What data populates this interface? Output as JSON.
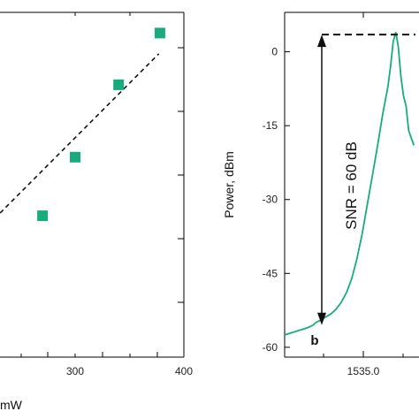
{
  "chart_data": [
    {
      "type": "scatter",
      "panel": "left",
      "xlabel": "mW",
      "ylabel": "",
      "x_ticks": [
        "300",
        "400"
      ],
      "xlim": [
        200,
        400
      ],
      "ylim": [
        0,
        1
      ],
      "series": [
        {
          "points": [
            {
              "x": 270,
              "y": 0.41
            },
            {
              "x": 300,
              "y": 0.58
            },
            {
              "x": 340,
              "y": 0.79
            },
            {
              "x": 378,
              "y": 0.94
            }
          ]
        }
      ],
      "fit_line": {
        "x": [
          200,
          377
        ],
        "y": [
          0.32,
          0.88
        ]
      },
      "colors": {
        "marker": "#1aab7c",
        "fit": "#111111"
      }
    },
    {
      "type": "line",
      "panel": "right",
      "panel_label": "b",
      "ylabel": "Power, dBm",
      "xlabel": "",
      "x_ticks": [
        "1535.0"
      ],
      "y_ticks": [
        "0",
        "-15",
        "-30",
        "-45",
        "-60"
      ],
      "xlim": [
        1534.0,
        1536.6
      ],
      "ylim": [
        -62,
        8
      ],
      "annotation": "SNR = 60 dB",
      "snr_levels": {
        "top_dbm": 3.5,
        "bottom_dbm": -55.5
      },
      "series": [
        {
          "x": [
            1534.0,
            1534.15,
            1534.3,
            1534.45,
            1534.55,
            1534.6,
            1534.7,
            1534.8,
            1534.9,
            1535.0,
            1535.1,
            1535.2,
            1535.3,
            1535.4,
            1535.5,
            1535.6,
            1535.7,
            1535.8,
            1535.9,
            1536.0,
            1536.05,
            1536.1,
            1536.15,
            1536.2,
            1536.25,
            1536.3,
            1536.35,
            1536.4,
            1536.5
          ],
          "y": [
            -57.5,
            -57.0,
            -56.5,
            -56.0,
            -55.5,
            -55.0,
            -54.5,
            -53.8,
            -53.2,
            -52.2,
            -50.8,
            -48.8,
            -46.0,
            -42.0,
            -37.0,
            -31.0,
            -25.0,
            -19.0,
            -12.5,
            -7.0,
            -3.0,
            2.0,
            4.0,
            1.0,
            -5.0,
            -9.0,
            -11.0,
            -16.0,
            -19.0
          ]
        }
      ],
      "colors": {
        "trace": "#1aab7c",
        "arrow": "#111111"
      }
    }
  ]
}
